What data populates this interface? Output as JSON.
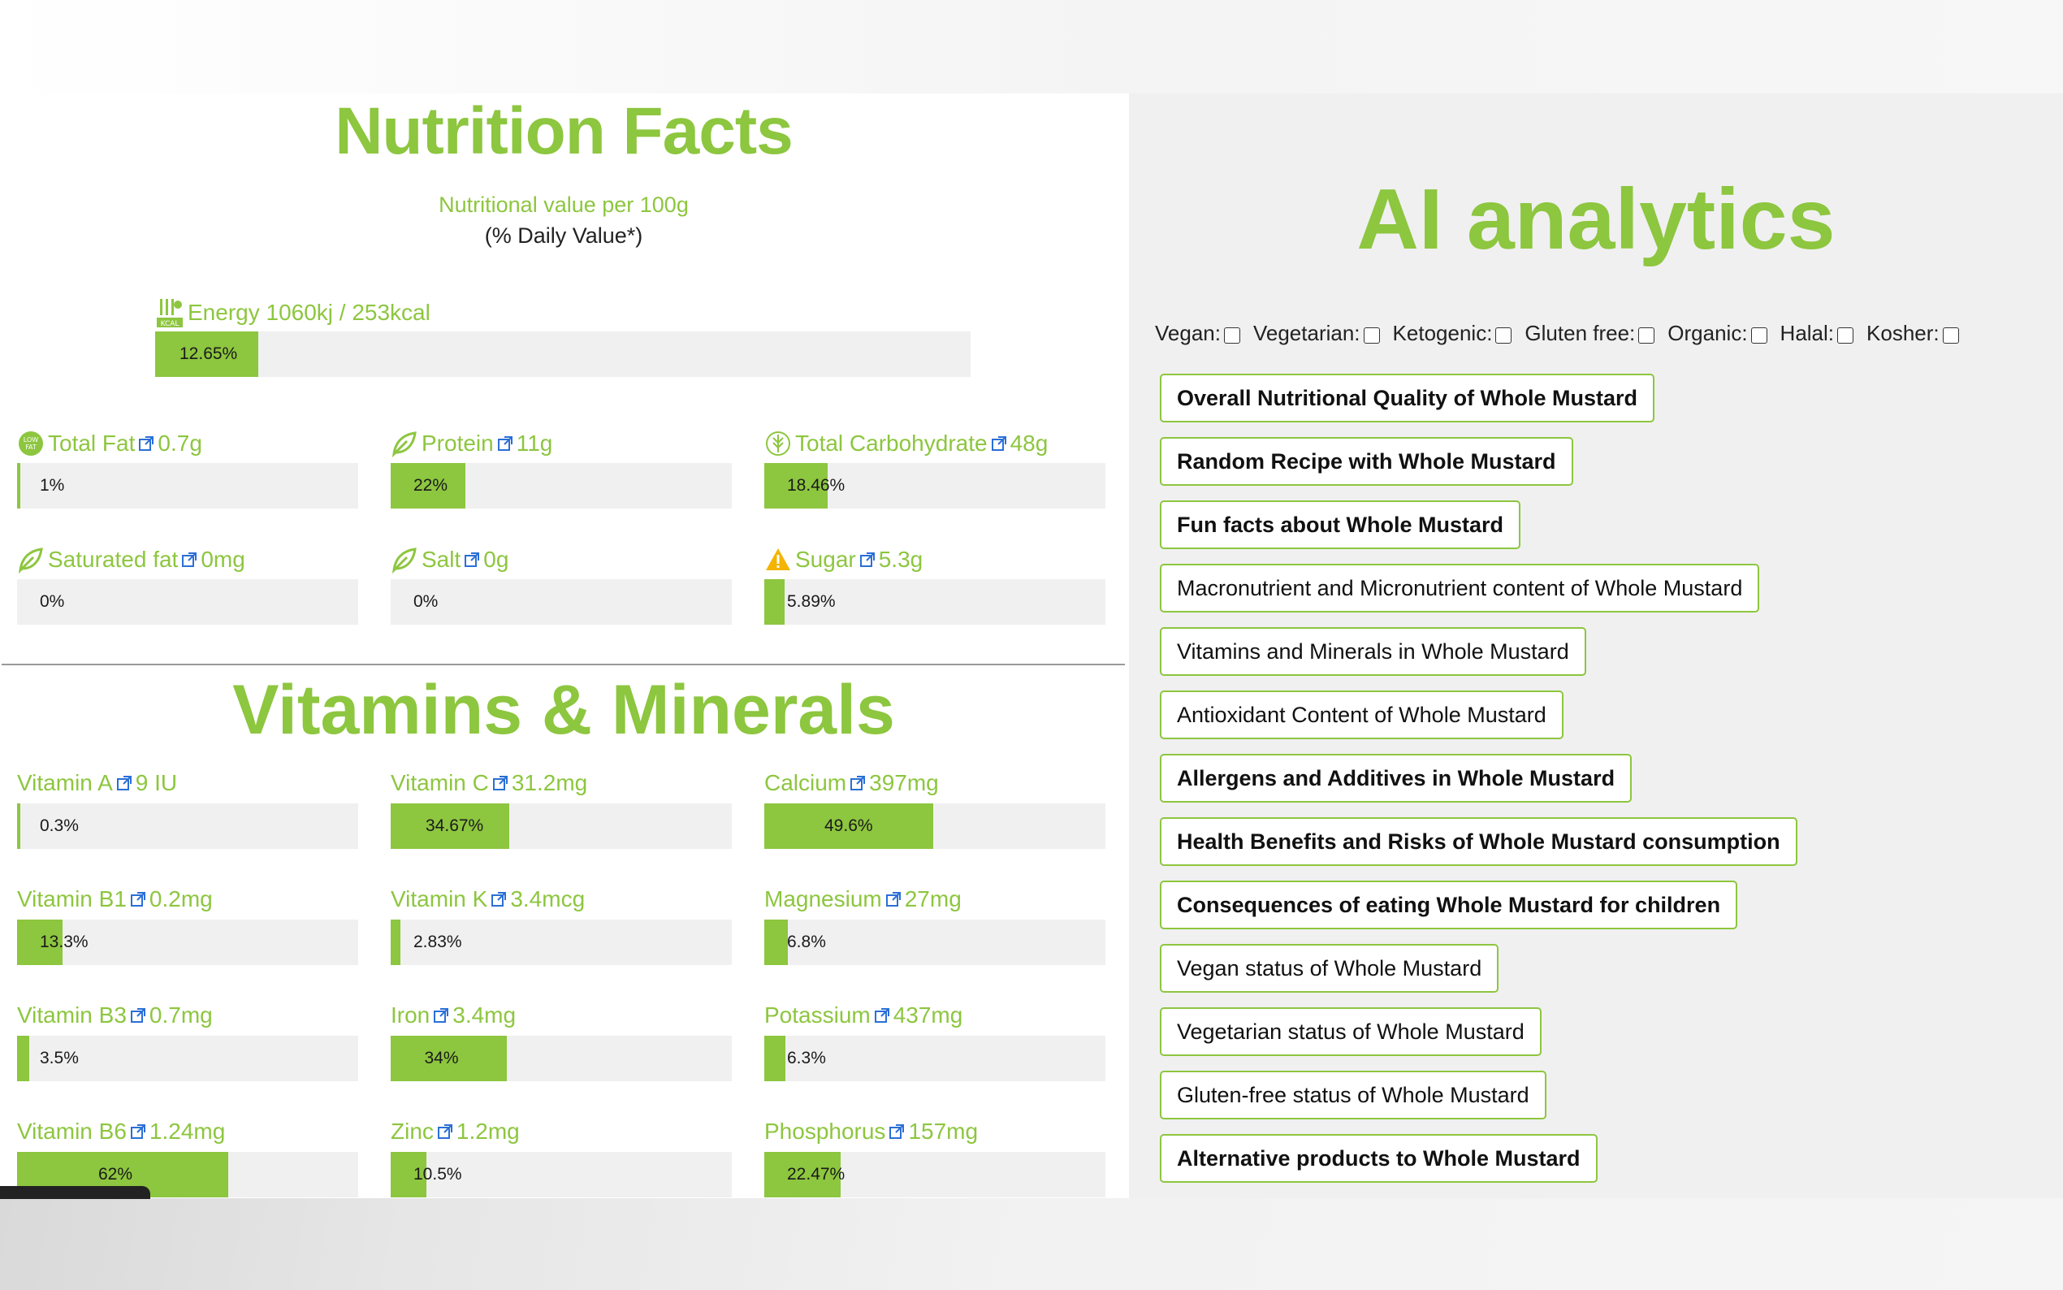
{
  "nutrition": {
    "title": "Nutrition Facts",
    "subtitle": "Nutritional value per 100g",
    "subtitle2": "(% Daily Value*)",
    "energy": {
      "label": "Energy 1060kj / 253kcal",
      "pct_text": "12.65%",
      "pct": 12.65
    },
    "macros": [
      {
        "name": "Total Fat",
        "value": "0.7g",
        "pct_text": "1%",
        "pct": 1,
        "icon": "low-fat-icon"
      },
      {
        "name": "Protein",
        "value": "11g",
        "pct_text": "22%",
        "pct": 22,
        "icon": "leaf-icon"
      },
      {
        "name": "Total Carbohydrate",
        "value": "48g",
        "pct_text": "18.46%",
        "pct": 18.46,
        "icon": "grain-icon"
      },
      {
        "name": "Saturated fat",
        "value": "0mg",
        "pct_text": "0%",
        "pct": 0,
        "icon": "leaf-icon"
      },
      {
        "name": "Salt",
        "value": "0g",
        "pct_text": "0%",
        "pct": 0,
        "icon": "leaf-icon"
      },
      {
        "name": "Sugar",
        "value": "5.3g",
        "pct_text": "5.89%",
        "pct": 5.89,
        "icon": "warning-icon"
      }
    ]
  },
  "vitamins": {
    "title": "Vitamins & Minerals",
    "items": [
      {
        "name": "Vitamin A",
        "value": "9 IU",
        "pct_text": "0.3%",
        "pct": 0.3
      },
      {
        "name": "Vitamin C",
        "value": "31.2mg",
        "pct_text": "34.67%",
        "pct": 34.67
      },
      {
        "name": "Calcium",
        "value": "397mg",
        "pct_text": "49.6%",
        "pct": 49.6
      },
      {
        "name": "Vitamin B1",
        "value": "0.2mg",
        "pct_text": "13.3%",
        "pct": 13.3
      },
      {
        "name": "Vitamin K",
        "value": "3.4mcg",
        "pct_text": "2.83%",
        "pct": 2.83
      },
      {
        "name": "Magnesium",
        "value": "27mg",
        "pct_text": "6.8%",
        "pct": 6.8
      },
      {
        "name": "Vitamin B3",
        "value": "0.7mg",
        "pct_text": "3.5%",
        "pct": 3.5
      },
      {
        "name": "Iron",
        "value": "3.4mg",
        "pct_text": "34%",
        "pct": 34
      },
      {
        "name": "Potassium",
        "value": "437mg",
        "pct_text": "6.3%",
        "pct": 6.3
      },
      {
        "name": "Vitamin B6",
        "value": "1.24mg",
        "pct_text": "62%",
        "pct": 62
      },
      {
        "name": "Zinc",
        "value": "1.2mg",
        "pct_text": "10.5%",
        "pct": 10.5
      },
      {
        "name": "Phosphorus",
        "value": "157mg",
        "pct_text": "22.47%",
        "pct": 22.47
      }
    ]
  },
  "ai": {
    "title": "AI analytics",
    "diets": [
      "Vegan:",
      "Vegetarian:",
      "Ketogenic:",
      "Gluten free:",
      "Organic:",
      "Halal:",
      "Kosher:"
    ],
    "buttons": [
      {
        "label": "Overall Nutritional Quality of Whole Mustard",
        "bold": true
      },
      {
        "label": "Random Recipe with Whole Mustard",
        "bold": true
      },
      {
        "label": "Fun facts about Whole Mustard",
        "bold": true
      },
      {
        "label": "Macronutrient and Micronutrient content of Whole Mustard",
        "bold": false
      },
      {
        "label": "Vitamins and Minerals in Whole Mustard",
        "bold": false
      },
      {
        "label": "Antioxidant Content of Whole Mustard",
        "bold": false
      },
      {
        "label": "Allergens and Additives in Whole Mustard",
        "bold": true
      },
      {
        "label": "Health Benefits and Risks of Whole Mustard consumption",
        "bold": true
      },
      {
        "label": "Consequences of eating Whole Mustard for children",
        "bold": true
      },
      {
        "label": "Vegan status of Whole Mustard",
        "bold": false
      },
      {
        "label": "Vegetarian status of Whole Mustard",
        "bold": false
      },
      {
        "label": "Gluten-free status of Whole Mustard",
        "bold": false
      },
      {
        "label": "Alternative products to Whole Mustard",
        "bold": true
      }
    ]
  },
  "colors": {
    "accent": "#8dc63f",
    "bar_bg": "#f0f0f0",
    "panel_bg": "#f0f0f0"
  }
}
